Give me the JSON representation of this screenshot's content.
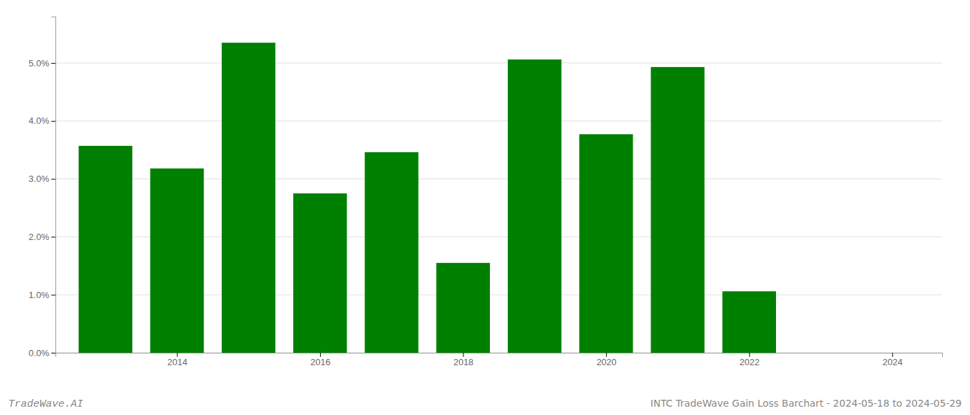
{
  "chart_data": {
    "type": "bar",
    "title": "INTC TradeWave Gain Loss Barchart - 2024-05-18 to 2024-05-29",
    "annotations": [
      "TradeWave.AI"
    ],
    "x": [
      2013,
      2014,
      2015,
      2016,
      2017,
      2018,
      2019,
      2020,
      2021,
      2022,
      2023
    ],
    "values": [
      3.57,
      3.18,
      5.35,
      2.75,
      3.46,
      1.55,
      5.06,
      3.77,
      4.93,
      1.06,
      0.0
    ],
    "color": "#008000",
    "xlim": [
      2012.3,
      2024.7
    ],
    "xticks": [
      2014,
      2016,
      2018,
      2020,
      2022,
      2024
    ],
    "ylim": [
      0,
      5.8
    ],
    "yticks": [
      {
        "value": 0.0,
        "label": "0.0%"
      },
      {
        "value": 1.0,
        "label": "1.0%"
      },
      {
        "value": 2.0,
        "label": "2.0%"
      },
      {
        "value": 3.0,
        "label": "3.0%"
      },
      {
        "value": 4.0,
        "label": "4.0%"
      },
      {
        "value": 5.0,
        "label": "5.0%"
      }
    ],
    "grid": true
  }
}
